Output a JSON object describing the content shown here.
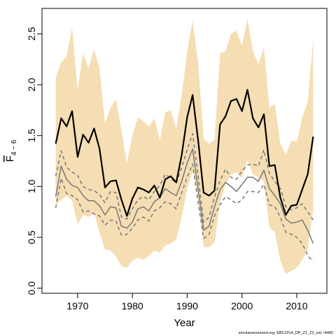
{
  "chart_data": {
    "type": "line",
    "title": "",
    "xlabel": "Year",
    "ylabel": "F̅4–6",
    "ylabel_main": "F",
    "ylabel_sub": "4 − 6",
    "xlim": [
      1963.5,
      2015.5
    ],
    "ylim": [
      -0.05,
      2.75
    ],
    "xticks": [
      1970,
      1980,
      1990,
      2000,
      2010
    ],
    "xtick_labels": [
      "1970",
      "1980",
      "1990",
      "2000",
      "2010"
    ],
    "yticks": [
      0.0,
      0.5,
      1.0,
      1.5,
      2.0,
      2.5
    ],
    "ytick_labels": [
      "0.0",
      "0.5",
      "1.0",
      "1.5",
      "2.0",
      "2.5"
    ],
    "grid": false,
    "legend": "none",
    "footnote": "stockassessment.org, EBC2014_DP_Z1_Z2_est, r4482",
    "x": [
      1966,
      1967,
      1968,
      1969,
      1970,
      1971,
      1972,
      1973,
      1974,
      1975,
      1976,
      1977,
      1978,
      1979,
      1980,
      1981,
      1982,
      1983,
      1984,
      1985,
      1986,
      1987,
      1988,
      1989,
      1990,
      1991,
      1992,
      1993,
      1994,
      1995,
      1996,
      1997,
      1998,
      1999,
      2000,
      2001,
      2002,
      2003,
      2004,
      2005,
      2006,
      2007,
      2008,
      2009,
      2010,
      2011,
      2012,
      2013
    ],
    "series": [
      {
        "role": "band_upper",
        "color": "#f5deb3",
        "values": [
          2.07,
          2.22,
          2.28,
          2.56,
          1.95,
          2.31,
          2.16,
          2.35,
          2.16,
          1.62,
          1.77,
          1.86,
          1.55,
          1.23,
          1.5,
          1.68,
          1.64,
          1.59,
          1.67,
          1.45,
          1.73,
          1.75,
          1.57,
          1.89,
          2.33,
          2.63,
          2.2,
          1.47,
          1.42,
          1.46,
          2.31,
          2.33,
          2.5,
          2.53,
          2.38,
          2.65,
          2.33,
          2.2,
          2.37,
          1.77,
          1.81,
          1.42,
          1.31,
          1.45,
          1.44,
          1.68,
          1.83,
          2.45
        ]
      },
      {
        "role": "band_lower",
        "color": "#f5deb3",
        "values": [
          0.82,
          0.87,
          0.91,
          0.86,
          0.63,
          0.72,
          0.7,
          0.74,
          0.55,
          0.38,
          0.37,
          0.31,
          0.22,
          0.2,
          0.27,
          0.3,
          0.28,
          0.32,
          0.37,
          0.35,
          0.42,
          0.44,
          0.48,
          0.7,
          0.98,
          1.15,
          0.88,
          0.41,
          0.4,
          0.45,
          0.84,
          1.02,
          1.12,
          1.14,
          1.08,
          1.26,
          1.12,
          1.09,
          1.05,
          0.6,
          0.55,
          0.27,
          0.14,
          0.17,
          0.2,
          0.28,
          0.38,
          0.78
        ]
      },
      {
        "role": "estimate",
        "color": "#000000",
        "values": [
          1.42,
          1.67,
          1.59,
          1.74,
          1.29,
          1.51,
          1.43,
          1.57,
          1.37,
          0.99,
          1.05,
          1.06,
          0.87,
          0.71,
          0.88,
          0.99,
          0.97,
          0.94,
          1.01,
          0.89,
          1.07,
          1.1,
          1.04,
          1.31,
          1.68,
          1.9,
          1.45,
          0.94,
          0.91,
          0.96,
          1.61,
          1.69,
          1.84,
          1.86,
          1.74,
          1.95,
          1.67,
          1.58,
          1.71,
          1.2,
          1.21,
          0.89,
          0.72,
          0.81,
          0.82,
          0.97,
          1.12,
          1.49
        ]
      },
      {
        "role": "model_fit",
        "color": "#777777",
        "values": [
          0.9,
          1.2,
          1.07,
          1.01,
          0.99,
          0.91,
          0.86,
          0.86,
          0.81,
          0.72,
          0.8,
          0.79,
          0.61,
          0.59,
          0.65,
          0.78,
          0.8,
          0.76,
          0.85,
          0.89,
          0.98,
          0.94,
          0.91,
          1.05,
          1.23,
          1.37,
          0.97,
          0.57,
          0.61,
          0.8,
          0.97,
          1.04,
          1.0,
          0.95,
          1.02,
          1.09,
          1.09,
          1.05,
          1.16,
          0.98,
          0.91,
          0.83,
          0.68,
          0.64,
          0.65,
          0.67,
          0.57,
          0.44
        ]
      },
      {
        "role": "model_fit_upper",
        "color": "#777777",
        "values": [
          1.1,
          1.35,
          1.19,
          1.14,
          1.11,
          1.0,
          0.97,
          0.96,
          0.92,
          0.84,
          0.95,
          0.94,
          0.7,
          0.68,
          0.78,
          0.87,
          0.9,
          0.87,
          0.95,
          1.01,
          1.12,
          1.08,
          1.03,
          1.19,
          1.36,
          1.52,
          1.1,
          0.65,
          0.7,
          0.9,
          1.06,
          1.17,
          1.09,
          1.07,
          1.15,
          1.21,
          1.22,
          1.2,
          1.36,
          1.13,
          1.05,
          0.98,
          0.8,
          0.77,
          0.79,
          0.83,
          0.75,
          0.67
        ]
      },
      {
        "role": "model_fit_lower",
        "color": "#777777",
        "values": [
          0.79,
          1.08,
          0.93,
          0.91,
          0.87,
          0.75,
          0.76,
          0.73,
          0.71,
          0.62,
          0.67,
          0.66,
          0.52,
          0.53,
          0.59,
          0.67,
          0.7,
          0.66,
          0.76,
          0.79,
          0.85,
          0.83,
          0.78,
          0.94,
          1.09,
          1.22,
          0.84,
          0.49,
          0.53,
          0.71,
          0.82,
          0.9,
          0.87,
          0.83,
          0.87,
          0.95,
          0.95,
          0.94,
          1.02,
          0.82,
          0.8,
          0.7,
          0.55,
          0.53,
          0.5,
          0.44,
          0.32,
          0.26
        ]
      }
    ]
  }
}
